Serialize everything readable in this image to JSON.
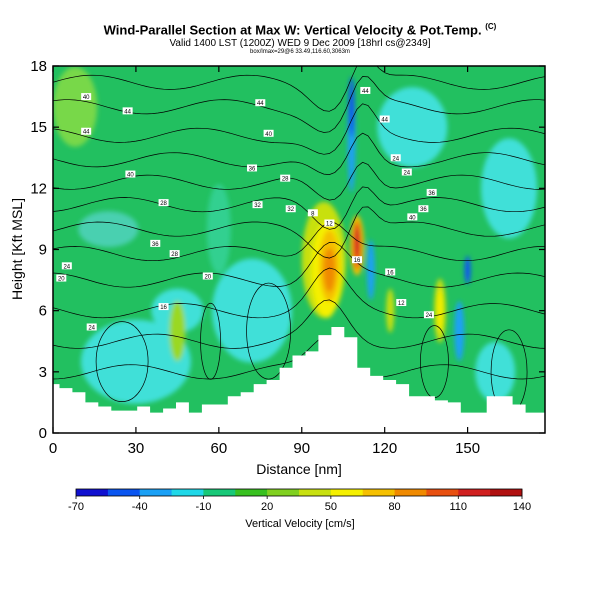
{
  "header": {
    "title": "Wind-Parallel Section at Max W: Vertical Velocity & Pot.Temp.",
    "title_mark": "(C)",
    "subtitle": "Valid 1400 LST (1200Z) WED 9 Dec 2009 [18hrl cs@2349]",
    "detail": "box/lmax=29@6 33.49,116.60,3063m"
  },
  "chart_data": {
    "type": "heatmap",
    "xlabel": "Distance [nm]",
    "ylabel": "Height [Kft MSL]",
    "xlim": [
      0,
      178
    ],
    "ylim": [
      0,
      18
    ],
    "xticks": [
      0,
      30,
      60,
      90,
      120,
      150
    ],
    "yticks": [
      0,
      3,
      6,
      9,
      12,
      15,
      18
    ],
    "colorbar": {
      "label": "Vertical Velocity [cm/s]",
      "ticks": [
        "-70",
        "-40",
        "-10",
        "20",
        "50",
        "80",
        "110",
        "140"
      ],
      "colors": [
        "#1010d0",
        "#0a55f0",
        "#1aa0f5",
        "#20d8e8",
        "#18c878",
        "#38c020",
        "#80d020",
        "#c8e010",
        "#f5f000",
        "#f5c000",
        "#f08a00",
        "#e85010",
        "#d02020",
        "#b01010"
      ]
    },
    "background_color": "#22c060",
    "series": [
      {
        "x": 100,
        "y": 8.2,
        "value": 110
      },
      {
        "x": 110,
        "y": 9.2,
        "value": 140
      },
      {
        "x": 108,
        "y": 14.5,
        "value": -70
      },
      {
        "x": 115,
        "y": 8.0,
        "value": -40
      },
      {
        "x": 140,
        "y": 6.0,
        "value": 80
      },
      {
        "x": 147,
        "y": 5.0,
        "value": -40
      }
    ],
    "contour_labels": [
      "40",
      "44",
      "44",
      "44",
      "44",
      "44",
      "40",
      "40",
      "36",
      "28",
      "24",
      "24",
      "36",
      "28",
      "32",
      "32",
      "36",
      "36",
      "40",
      "28",
      "24",
      "20",
      "20",
      "16",
      "12",
      "8",
      "16",
      "16",
      "24",
      "24",
      "12"
    ],
    "terrain_heights": [
      2.4,
      2.2,
      2.0,
      1.5,
      1.3,
      1.1,
      1.1,
      1.3,
      1.0,
      1.2,
      1.5,
      1.0,
      1.4,
      1.4,
      1.8,
      2.0,
      2.4,
      2.6,
      3.2,
      3.8,
      4.0,
      4.8,
      5.2,
      4.7,
      3.2,
      2.8,
      2.6,
      2.4,
      1.8,
      1.8,
      1.6,
      1.5,
      1.0,
      1.0,
      1.8,
      1.8,
      1.4,
      1.0,
      1.0
    ]
  }
}
